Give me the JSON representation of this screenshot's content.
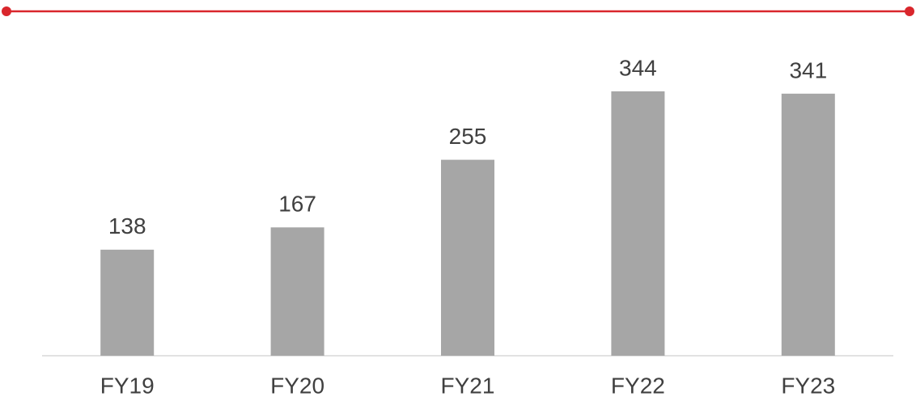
{
  "chart_data": {
    "type": "bar",
    "categories": [
      "FY19",
      "FY20",
      "FY21",
      "FY22",
      "FY23"
    ],
    "values": [
      138,
      167,
      255,
      344,
      341
    ],
    "color": "#a6a6a6",
    "ylim": [
      0,
      360
    ]
  }
}
